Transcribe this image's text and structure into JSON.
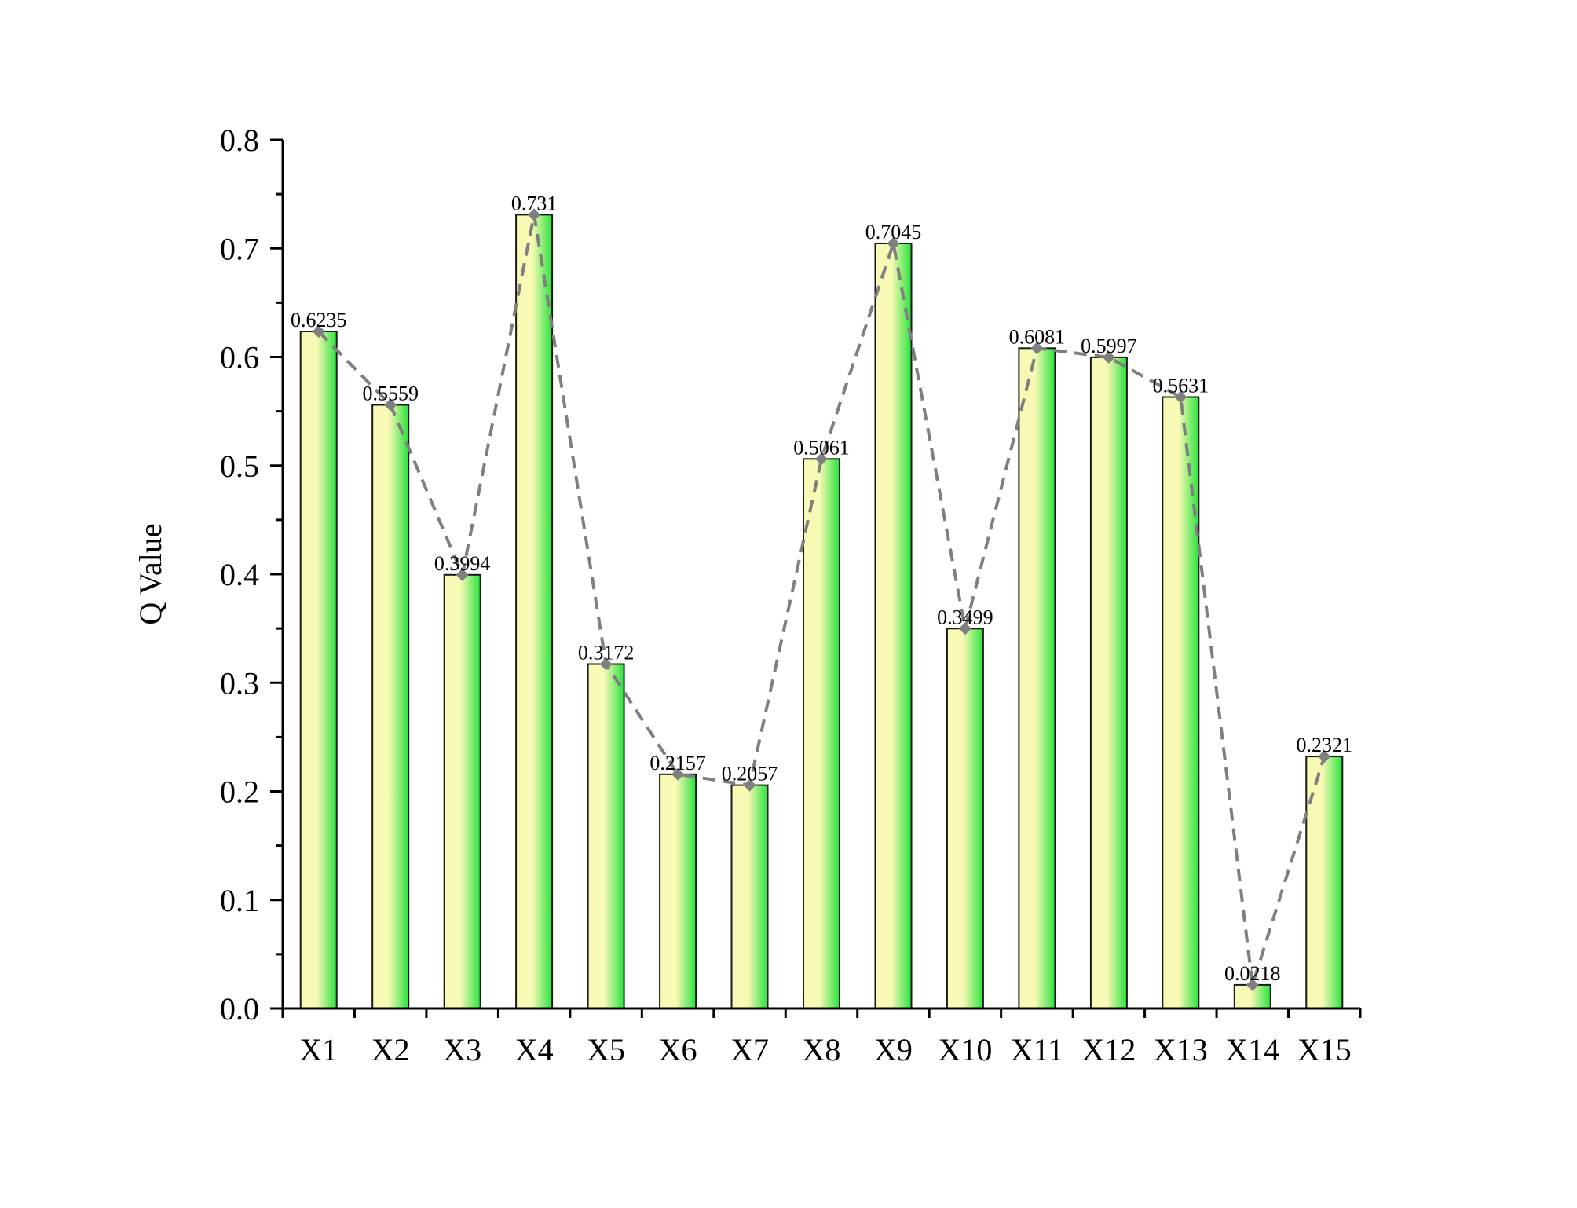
{
  "chart_data": {
    "type": "bar",
    "title": "",
    "xlabel": "",
    "ylabel": "Q Value",
    "categories": [
      "X1",
      "X2",
      "X3",
      "X4",
      "X5",
      "X6",
      "X7",
      "X8",
      "X9",
      "X10",
      "X11",
      "X12",
      "X13",
      "X14",
      "X15"
    ],
    "values": [
      0.6235,
      0.5559,
      0.3994,
      0.731,
      0.3172,
      0.2157,
      0.2057,
      0.5061,
      0.7045,
      0.3499,
      0.6081,
      0.5997,
      0.5631,
      0.0218,
      0.2321
    ],
    "value_labels": [
      "0.6235",
      "0.5559",
      "0.3994",
      "0.731",
      "0.3172",
      "0.2157",
      "0.2057",
      "0.5061",
      "0.7045",
      "0.3499",
      "0.6081",
      "0.5997",
      "0.5631",
      "0.0218",
      "0.2321"
    ],
    "ylim": [
      0,
      0.8
    ],
    "yticks": [
      "0.0",
      "0.1",
      "0.2",
      "0.3",
      "0.4",
      "0.5",
      "0.6",
      "0.7",
      "0.8"
    ],
    "grid": false,
    "legend": "none",
    "overlay_line": {
      "style": "dashed",
      "marker": "diamond",
      "color": "#7f7f7f"
    },
    "colors": {
      "bar_light": "#f7f9b4",
      "bar_green": "#29e33d",
      "bar_outline": "#1a1a1a",
      "axis": "#000000"
    }
  }
}
